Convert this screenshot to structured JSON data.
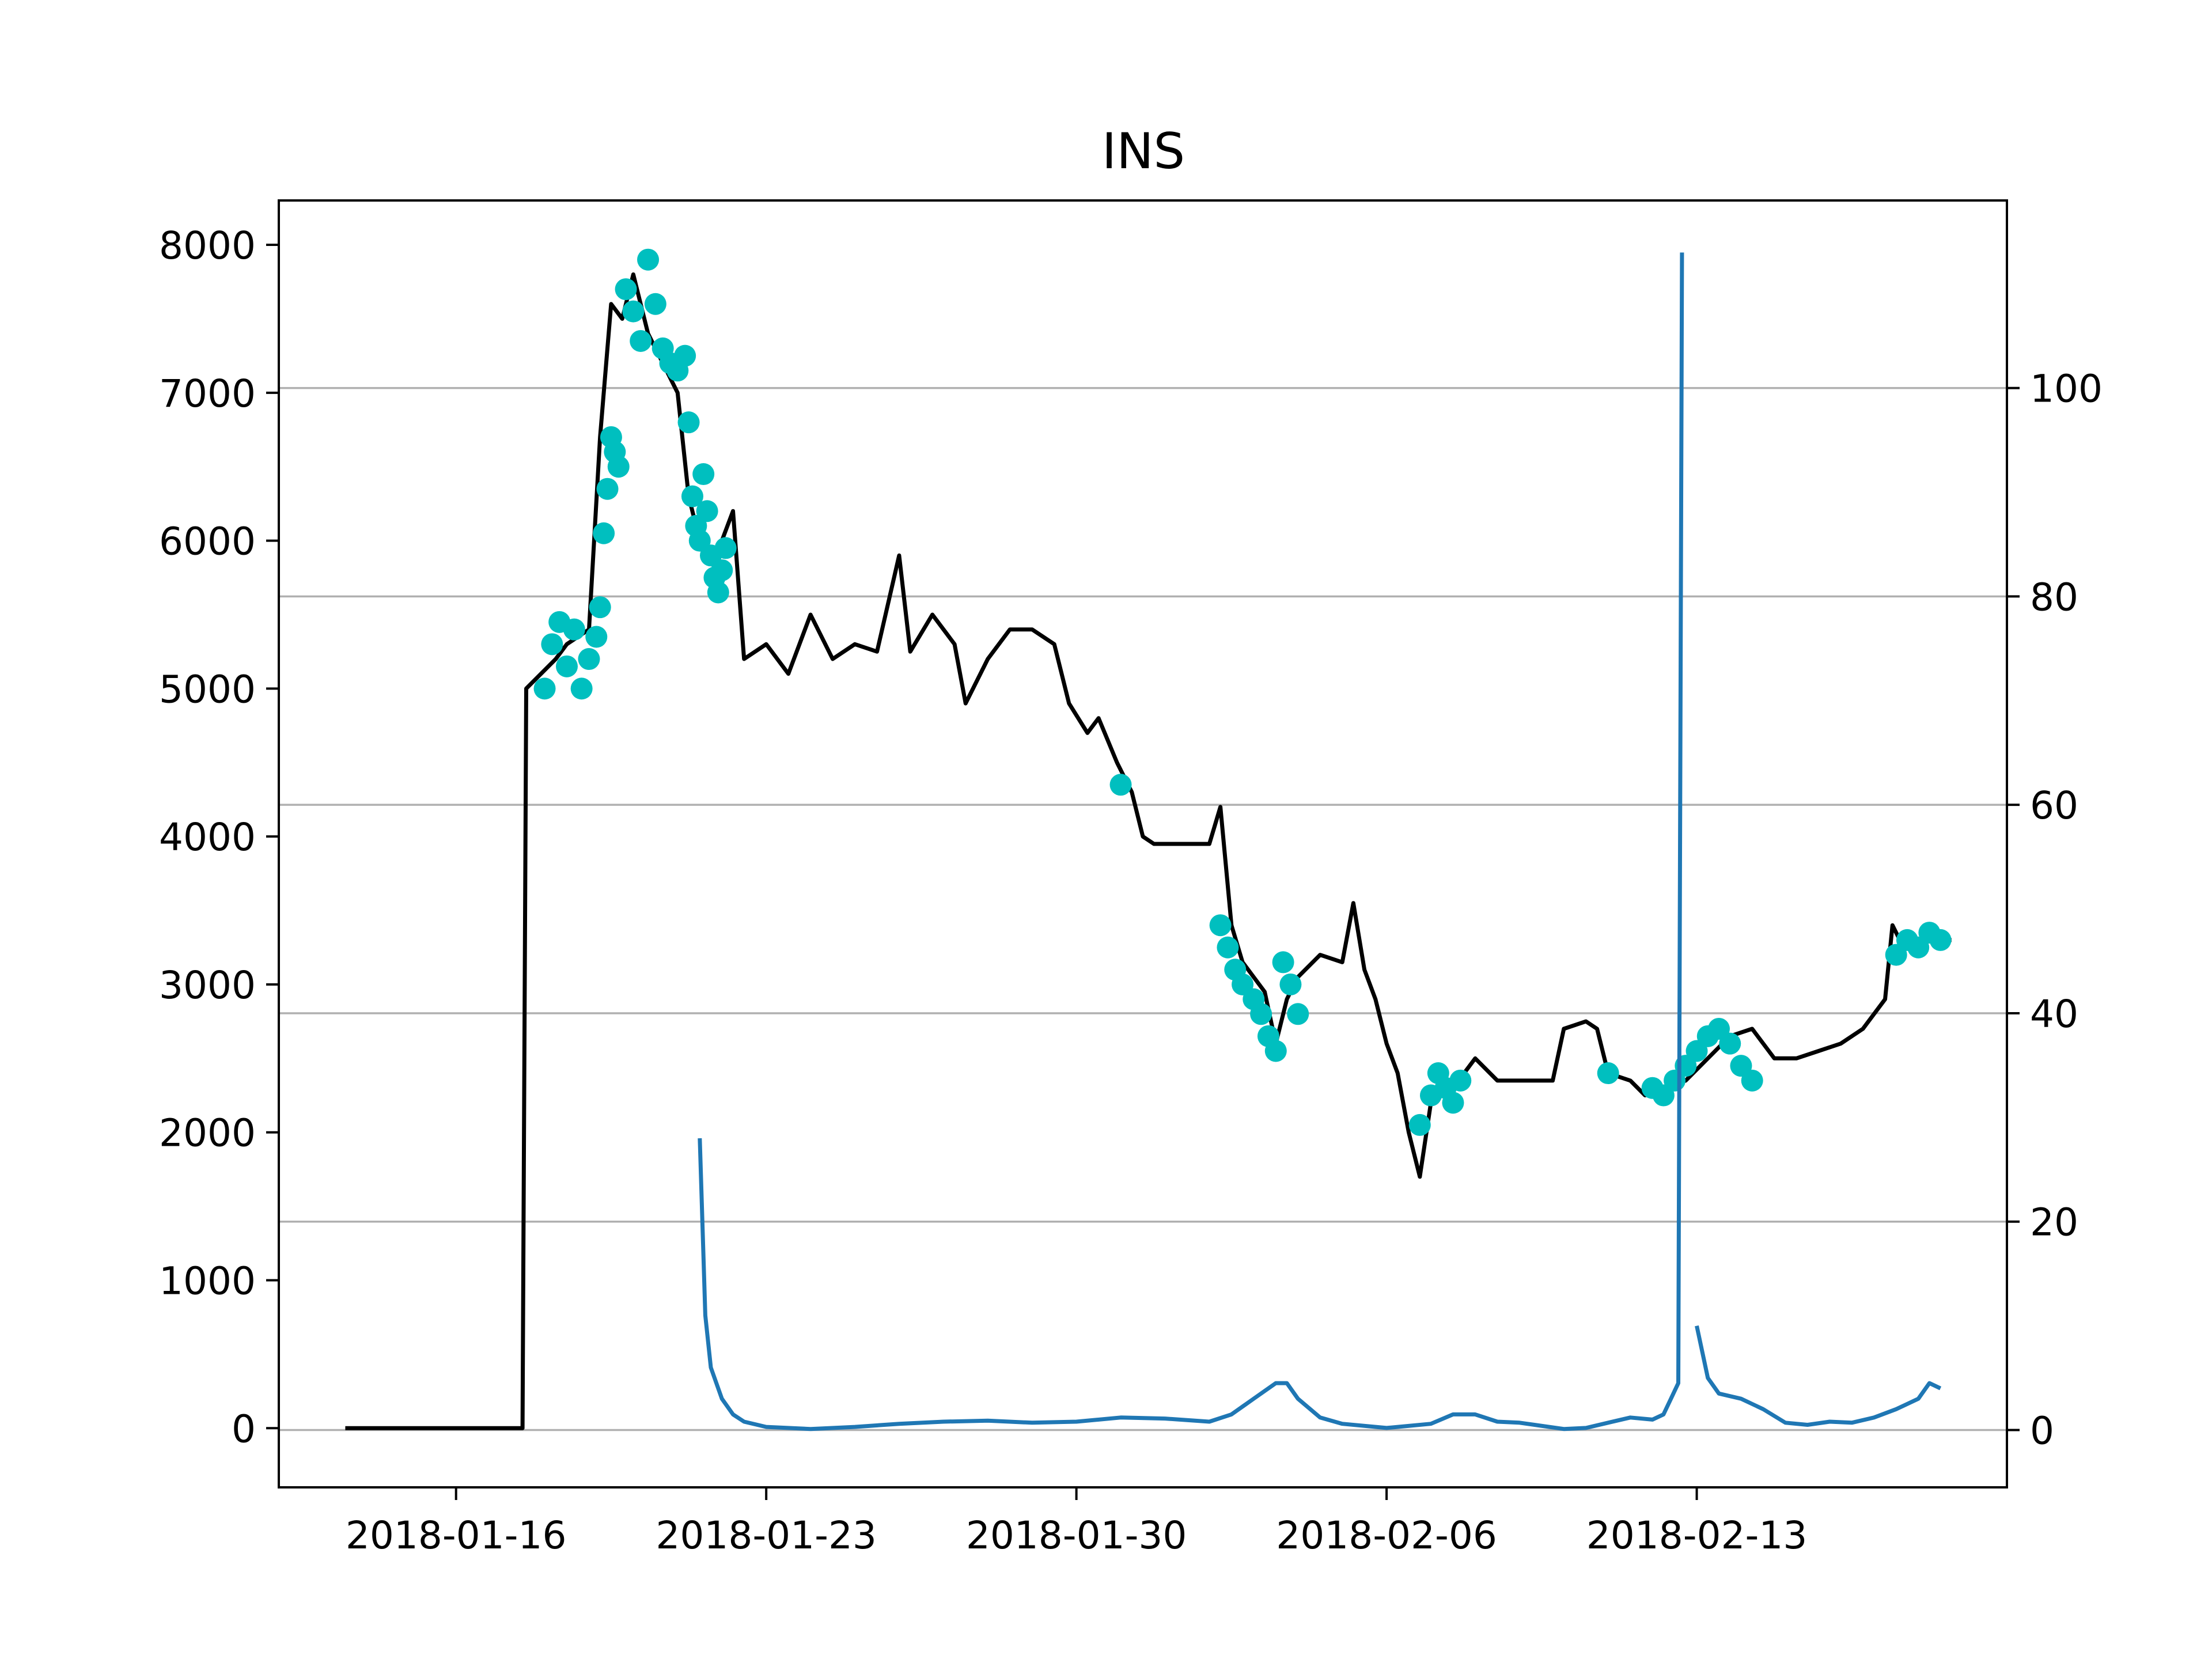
{
  "chart_data": {
    "type": "line",
    "title": "INS",
    "xlabel": "",
    "ylabel": "",
    "x_axis": {
      "type": "date",
      "range": [
        "2018-01-12",
        "2018-02-20"
      ],
      "ticks": [
        "2018-01-16",
        "2018-01-23",
        "2018-01-30",
        "2018-02-06",
        "2018-02-13"
      ]
    },
    "y_left": {
      "range": [
        -400,
        8300
      ],
      "ticks": [
        0,
        1000,
        2000,
        3000,
        4000,
        5000,
        6000,
        7000,
        8000
      ]
    },
    "y_right": {
      "range": [
        -5.5,
        118
      ],
      "ticks": [
        0,
        20,
        40,
        60,
        80,
        100
      ]
    },
    "grid": "horizontal lines at right-axis ticks",
    "legend": "none",
    "colors": {
      "price": "#000000",
      "markers": "#00bfbf",
      "secondary": "#1f77b4",
      "grid": "#b0b0b0"
    },
    "series": [
      {
        "axis": "left",
        "style": "line",
        "color": "#000000",
        "points": [
          [
            "2018-01-13T12:00",
            0
          ],
          [
            "2018-01-17T12:00",
            0
          ],
          [
            "2018-01-17T14:00",
            5000
          ],
          [
            "2018-01-18T06:00",
            5200
          ],
          [
            "2018-01-18T12:00",
            5300
          ],
          [
            "2018-01-19T00:00",
            5400
          ],
          [
            "2018-01-19T06:00",
            6700
          ],
          [
            "2018-01-19T12:00",
            7600
          ],
          [
            "2018-01-19T18:00",
            7500
          ],
          [
            "2018-01-20T00:00",
            7800
          ],
          [
            "2018-01-20T08:00",
            7400
          ],
          [
            "2018-01-20T16:00",
            7200
          ],
          [
            "2018-01-21T00:00",
            7000
          ],
          [
            "2018-01-21T06:00",
            6300
          ],
          [
            "2018-01-21T12:00",
            6000
          ],
          [
            "2018-01-21T18:00",
            5900
          ],
          [
            "2018-01-22T00:00",
            6000
          ],
          [
            "2018-01-22T06:00",
            6200
          ],
          [
            "2018-01-22T12:00",
            5200
          ],
          [
            "2018-01-23T00:00",
            5300
          ],
          [
            "2018-01-23T12:00",
            5100
          ],
          [
            "2018-01-24T00:00",
            5500
          ],
          [
            "2018-01-24T12:00",
            5200
          ],
          [
            "2018-01-25T00:00",
            5300
          ],
          [
            "2018-01-25T12:00",
            5250
          ],
          [
            "2018-01-26T00:00",
            5900
          ],
          [
            "2018-01-26T06:00",
            5250
          ],
          [
            "2018-01-26T18:00",
            5500
          ],
          [
            "2018-01-27T06:00",
            5300
          ],
          [
            "2018-01-27T12:00",
            4900
          ],
          [
            "2018-01-28T00:00",
            5200
          ],
          [
            "2018-01-28T12:00",
            5400
          ],
          [
            "2018-01-29T00:00",
            5400
          ],
          [
            "2018-01-29T12:00",
            5300
          ],
          [
            "2018-01-29T20:00",
            4900
          ],
          [
            "2018-01-30T06:00",
            4700
          ],
          [
            "2018-01-30T12:00",
            4800
          ],
          [
            "2018-01-30T22:00",
            4500
          ],
          [
            "2018-01-31T06:00",
            4300
          ],
          [
            "2018-01-31T12:00",
            4000
          ],
          [
            "2018-01-31T18:00",
            3950
          ],
          [
            "2018-02-01T06:00",
            3950
          ],
          [
            "2018-02-02T00:00",
            3950
          ],
          [
            "2018-02-02T06:00",
            4200
          ],
          [
            "2018-02-02T12:00",
            3400
          ],
          [
            "2018-02-02T18:00",
            3150
          ],
          [
            "2018-02-03T06:00",
            2950
          ],
          [
            "2018-02-03T12:00",
            2600
          ],
          [
            "2018-02-03T18:00",
            2900
          ],
          [
            "2018-02-04T00:00",
            3050
          ],
          [
            "2018-02-04T12:00",
            3200
          ],
          [
            "2018-02-05T00:00",
            3150
          ],
          [
            "2018-02-05T06:00",
            3550
          ],
          [
            "2018-02-05T12:00",
            3100
          ],
          [
            "2018-02-05T18:00",
            2900
          ],
          [
            "2018-02-06T00:00",
            2600
          ],
          [
            "2018-02-06T06:00",
            2400
          ],
          [
            "2018-02-06T12:00",
            2000
          ],
          [
            "2018-02-06T18:00",
            1700
          ],
          [
            "2018-02-07T00:00",
            2200
          ],
          [
            "2018-02-07T12:00",
            2300
          ],
          [
            "2018-02-08T00:00",
            2500
          ],
          [
            "2018-02-08T12:00",
            2350
          ],
          [
            "2018-02-09T00:00",
            2350
          ],
          [
            "2018-02-09T18:00",
            2350
          ],
          [
            "2018-02-10T00:00",
            2700
          ],
          [
            "2018-02-10T12:00",
            2750
          ],
          [
            "2018-02-10T18:00",
            2700
          ],
          [
            "2018-02-11T00:00",
            2400
          ],
          [
            "2018-02-11T12:00",
            2350
          ],
          [
            "2018-02-11T20:00",
            2250
          ],
          [
            "2018-02-12T06:00",
            2300
          ],
          [
            "2018-02-12T18:00",
            2350
          ],
          [
            "2018-02-13T06:00",
            2500
          ],
          [
            "2018-02-13T18:00",
            2650
          ],
          [
            "2018-02-14T06:00",
            2700
          ],
          [
            "2018-02-14T18:00",
            2500
          ],
          [
            "2018-02-15T06:00",
            2500
          ],
          [
            "2018-02-15T18:00",
            2550
          ],
          [
            "2018-02-16T06:00",
            2600
          ],
          [
            "2018-02-16T18:00",
            2700
          ],
          [
            "2018-02-17T06:00",
            2900
          ],
          [
            "2018-02-17T10:00",
            3400
          ],
          [
            "2018-02-17T16:00",
            3250
          ],
          [
            "2018-02-18T06:00",
            3300
          ],
          [
            "2018-02-18T18:00",
            3300
          ]
        ]
      },
      {
        "axis": "left",
        "style": "scatter",
        "color": "#00bfbf",
        "points": [
          [
            "2018-01-18T00:00",
            5000
          ],
          [
            "2018-01-18T04:00",
            5300
          ],
          [
            "2018-01-18T08:00",
            5450
          ],
          [
            "2018-01-18T12:00",
            5150
          ],
          [
            "2018-01-18T16:00",
            5400
          ],
          [
            "2018-01-18T20:00",
            5000
          ],
          [
            "2018-01-19T00:00",
            5200
          ],
          [
            "2018-01-19T04:00",
            5350
          ],
          [
            "2018-01-19T06:00",
            5550
          ],
          [
            "2018-01-19T08:00",
            6050
          ],
          [
            "2018-01-19T10:00",
            6350
          ],
          [
            "2018-01-19T12:00",
            6700
          ],
          [
            "2018-01-19T14:00",
            6600
          ],
          [
            "2018-01-19T16:00",
            6500
          ],
          [
            "2018-01-19T20:00",
            7700
          ],
          [
            "2018-01-20T00:00",
            7550
          ],
          [
            "2018-01-20T04:00",
            7350
          ],
          [
            "2018-01-20T08:00",
            7900
          ],
          [
            "2018-01-20T12:00",
            7600
          ],
          [
            "2018-01-20T16:00",
            7300
          ],
          [
            "2018-01-20T20:00",
            7200
          ],
          [
            "2018-01-21T00:00",
            7150
          ],
          [
            "2018-01-21T04:00",
            7250
          ],
          [
            "2018-01-21T06:00",
            6800
          ],
          [
            "2018-01-21T08:00",
            6300
          ],
          [
            "2018-01-21T10:00",
            6100
          ],
          [
            "2018-01-21T12:00",
            6000
          ],
          [
            "2018-01-21T14:00",
            6450
          ],
          [
            "2018-01-21T16:00",
            6200
          ],
          [
            "2018-01-21T18:00",
            5900
          ],
          [
            "2018-01-21T20:00",
            5750
          ],
          [
            "2018-01-21T22:00",
            5650
          ],
          [
            "2018-01-22T00:00",
            5800
          ],
          [
            "2018-01-22T02:00",
            5950
          ],
          [
            "2018-01-31T00:00",
            4350
          ],
          [
            "2018-02-02T06:00",
            3400
          ],
          [
            "2018-02-02T10:00",
            3250
          ],
          [
            "2018-02-02T14:00",
            3100
          ],
          [
            "2018-02-02T18:00",
            3000
          ],
          [
            "2018-02-03T00:00",
            2900
          ],
          [
            "2018-02-03T04:00",
            2800
          ],
          [
            "2018-02-03T08:00",
            2650
          ],
          [
            "2018-02-03T12:00",
            2550
          ],
          [
            "2018-02-03T16:00",
            3150
          ],
          [
            "2018-02-03T20:00",
            3000
          ],
          [
            "2018-02-04T00:00",
            2800
          ],
          [
            "2018-02-06T18:00",
            2050
          ],
          [
            "2018-02-07T00:00",
            2250
          ],
          [
            "2018-02-07T04:00",
            2400
          ],
          [
            "2018-02-07T08:00",
            2300
          ],
          [
            "2018-02-07T12:00",
            2200
          ],
          [
            "2018-02-07T16:00",
            2350
          ],
          [
            "2018-02-11T00:00",
            2400
          ],
          [
            "2018-02-12T00:00",
            2300
          ],
          [
            "2018-02-12T06:00",
            2250
          ],
          [
            "2018-02-12T12:00",
            2350
          ],
          [
            "2018-02-12T18:00",
            2450
          ],
          [
            "2018-02-13T00:00",
            2550
          ],
          [
            "2018-02-13T06:00",
            2650
          ],
          [
            "2018-02-13T12:00",
            2700
          ],
          [
            "2018-02-13T18:00",
            2600
          ],
          [
            "2018-02-14T00:00",
            2450
          ],
          [
            "2018-02-14T06:00",
            2350
          ],
          [
            "2018-02-17T12:00",
            3200
          ],
          [
            "2018-02-17T18:00",
            3300
          ],
          [
            "2018-02-18T00:00",
            3250
          ],
          [
            "2018-02-18T06:00",
            3350
          ],
          [
            "2018-02-18T12:00",
            3300
          ]
        ]
      },
      {
        "axis": "right",
        "style": "line",
        "color": "#1f77b4",
        "points": [
          [
            "2018-01-21T12:00",
            28
          ],
          [
            "2018-01-21T15:00",
            11
          ],
          [
            "2018-01-21T18:00",
            6
          ],
          [
            "2018-01-22T00:00",
            3
          ],
          [
            "2018-01-22T06:00",
            1.5
          ],
          [
            "2018-01-22T12:00",
            0.8
          ],
          [
            "2018-01-23T00:00",
            0.3
          ],
          [
            "2018-01-24T00:00",
            0.1
          ],
          [
            "2018-01-25T00:00",
            0.3
          ],
          [
            "2018-01-26T00:00",
            0.6
          ],
          [
            "2018-01-27T00:00",
            0.8
          ],
          [
            "2018-01-28T00:00",
            0.9
          ],
          [
            "2018-01-29T00:00",
            0.7
          ],
          [
            "2018-01-30T00:00",
            0.8
          ],
          [
            "2018-01-31T00:00",
            1.2
          ],
          [
            "2018-02-01T00:00",
            1.1
          ],
          [
            "2018-02-02T00:00",
            0.8
          ],
          [
            "2018-02-02T12:00",
            1.5
          ],
          [
            "2018-02-03T00:00",
            3
          ],
          [
            "2018-02-03T12:00",
            4.5
          ],
          [
            "2018-02-03T18:00",
            4.5
          ],
          [
            "2018-02-04T00:00",
            3
          ],
          [
            "2018-02-04T12:00",
            1.2
          ],
          [
            "2018-02-05T00:00",
            0.6
          ],
          [
            "2018-02-06T00:00",
            0.2
          ],
          [
            "2018-02-07T00:00",
            0.6
          ],
          [
            "2018-02-07T12:00",
            1.5
          ],
          [
            "2018-02-08T00:00",
            1.5
          ],
          [
            "2018-02-08T12:00",
            0.8
          ],
          [
            "2018-02-09T00:00",
            0.7
          ],
          [
            "2018-02-10T00:00",
            0.1
          ],
          [
            "2018-02-10T12:00",
            0.2
          ],
          [
            "2018-02-11T00:00",
            0.7
          ],
          [
            "2018-02-11T12:00",
            1.2
          ],
          [
            "2018-02-12T00:00",
            1.0
          ],
          [
            "2018-02-12T06:00",
            1.5
          ],
          [
            "2018-02-12T10:00",
            3
          ],
          [
            "2018-02-12T14:00",
            4.5
          ],
          [
            "2018-02-12T16:00",
            113
          ]
        ]
      },
      {
        "axis": "right",
        "style": "line",
        "color": "#1f77b4",
        "points": [
          [
            "2018-02-13T00:00",
            10
          ],
          [
            "2018-02-13T06:00",
            5
          ],
          [
            "2018-02-13T12:00",
            3.5
          ],
          [
            "2018-02-14T00:00",
            3
          ],
          [
            "2018-02-14T12:00",
            2
          ],
          [
            "2018-02-15T00:00",
            0.7
          ],
          [
            "2018-02-15T12:00",
            0.5
          ],
          [
            "2018-02-16T00:00",
            0.8
          ],
          [
            "2018-02-16T12:00",
            0.7
          ],
          [
            "2018-02-17T00:00",
            1.2
          ],
          [
            "2018-02-17T12:00",
            2
          ],
          [
            "2018-02-18T00:00",
            3
          ],
          [
            "2018-02-18T06:00",
            4.5
          ],
          [
            "2018-02-18T12:00",
            4
          ]
        ]
      }
    ]
  }
}
